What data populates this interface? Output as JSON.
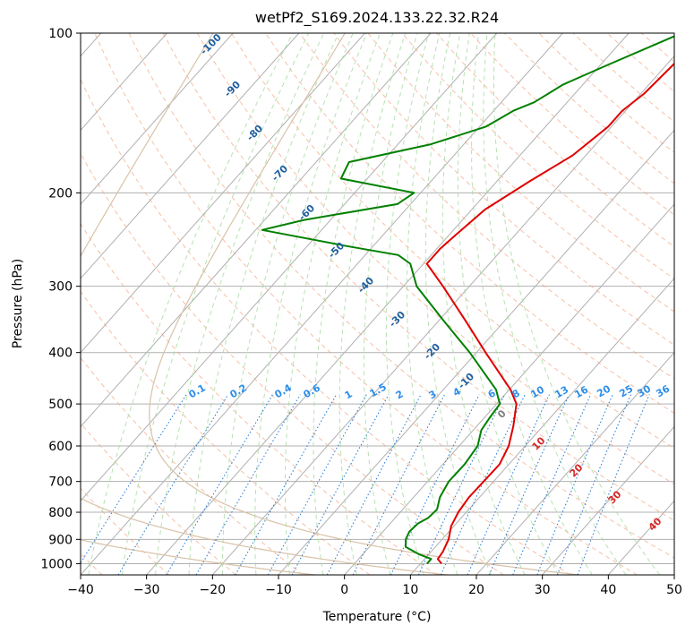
{
  "chart_data": {
    "type": "line",
    "title": "wetPf2_S169.2024.133.22.32.R24",
    "xlabel": "Temperature (°C)",
    "ylabel": "Pressure (hPa)",
    "xlim": [
      -40,
      50
    ],
    "ylim": [
      1050,
      100
    ],
    "yscale": "log",
    "grid": true,
    "x_ticks": [
      -40,
      -30,
      -20,
      -10,
      0,
      10,
      20,
      30,
      40,
      50
    ],
    "x_tick_labels": [
      "−40",
      "−30",
      "−20",
      "−10",
      "0",
      "10",
      "20",
      "30",
      "40",
      "50"
    ],
    "y_ticks": [
      100,
      200,
      300,
      400,
      500,
      600,
      700,
      800,
      900,
      1000
    ],
    "y_tick_labels": [
      "100",
      "200",
      "300",
      "400",
      "500",
      "600",
      "700",
      "800",
      "900",
      "1000"
    ],
    "series": [
      {
        "color": "#e00000",
        "points": [
          {
            "p": 1000,
            "t": 13.2
          },
          {
            "p": 980,
            "t": 12.0
          },
          {
            "p": 950,
            "t": 11.8
          },
          {
            "p": 900,
            "t": 11.0
          },
          {
            "p": 850,
            "t": 9.6
          },
          {
            "p": 800,
            "t": 8.8
          },
          {
            "p": 750,
            "t": 8.4
          },
          {
            "p": 700,
            "t": 8.5
          },
          {
            "p": 650,
            "t": 8.6
          },
          {
            "p": 600,
            "t": 7.5
          },
          {
            "p": 550,
            "t": 5.5
          },
          {
            "p": 500,
            "t": 3.0
          },
          {
            "p": 470,
            "t": 0.2
          },
          {
            "p": 400,
            "t": -8.6
          },
          {
            "p": 350,
            "t": -15.7
          },
          {
            "p": 300,
            "t": -24.0
          },
          {
            "p": 272,
            "t": -29.5
          },
          {
            "p": 255,
            "t": -29.5
          },
          {
            "p": 240,
            "t": -29.0
          },
          {
            "p": 215,
            "t": -28.0
          },
          {
            "p": 190,
            "t": -25.0
          },
          {
            "p": 170,
            "t": -22.0
          },
          {
            "p": 150,
            "t": -20.5
          },
          {
            "p": 140,
            "t": -20.5
          },
          {
            "p": 130,
            "t": -19.5
          },
          {
            "p": 115,
            "t": -19.0
          },
          {
            "p": 100,
            "t": -18.5
          }
        ]
      },
      {
        "color": "#008000",
        "points": [
          {
            "p": 1000,
            "t": 11.0
          },
          {
            "p": 980,
            "t": 11.0
          },
          {
            "p": 960,
            "t": 8.5
          },
          {
            "p": 930,
            "t": 5.5
          },
          {
            "p": 900,
            "t": 4.5
          },
          {
            "p": 870,
            "t": 4.0
          },
          {
            "p": 840,
            "t": 4.2
          },
          {
            "p": 820,
            "t": 5.0
          },
          {
            "p": 790,
            "t": 5.2
          },
          {
            "p": 750,
            "t": 4.0
          },
          {
            "p": 700,
            "t": 3.2
          },
          {
            "p": 650,
            "t": 3.3
          },
          {
            "p": 600,
            "t": 2.8
          },
          {
            "p": 560,
            "t": 1.2
          },
          {
            "p": 530,
            "t": 0.8
          },
          {
            "p": 500,
            "t": 0.5
          },
          {
            "p": 470,
            "t": -2.0
          },
          {
            "p": 400,
            "t": -11.0
          },
          {
            "p": 350,
            "t": -19.0
          },
          {
            "p": 300,
            "t": -28.0
          },
          {
            "p": 272,
            "t": -32.0
          },
          {
            "p": 262,
            "t": -35.0
          },
          {
            "p": 252,
            "t": -44.0
          },
          {
            "p": 235,
            "t": -59.0
          },
          {
            "p": 225,
            "t": -54.0
          },
          {
            "p": 210,
            "t": -42.0
          },
          {
            "p": 200,
            "t": -41.0
          },
          {
            "p": 188,
            "t": -54.0
          },
          {
            "p": 175,
            "t": -55.0
          },
          {
            "p": 162,
            "t": -45.0
          },
          {
            "p": 150,
            "t": -39.0
          },
          {
            "p": 140,
            "t": -37.0
          },
          {
            "p": 135,
            "t": -35.0
          },
          {
            "p": 125,
            "t": -33.0
          },
          {
            "p": 115,
            "t": -29.0
          },
          {
            "p": 100,
            "t": -22.0
          }
        ]
      }
    ],
    "dry_adiabat_labels": [
      "-100",
      "-90",
      "-80",
      "-70",
      "-60",
      "-50",
      "-40",
      "-30",
      "-20",
      "-10"
    ],
    "mixing_ratio_labels": [
      "0.1",
      "0.2",
      "0.4",
      "0.6",
      "1",
      "1.5",
      "2",
      "3",
      "4",
      "6",
      "8",
      "10",
      "13",
      "16",
      "20",
      "25",
      "30",
      "36"
    ],
    "moist_adiabat_labels": [
      "0",
      "10",
      "20",
      "30",
      "40"
    ]
  }
}
